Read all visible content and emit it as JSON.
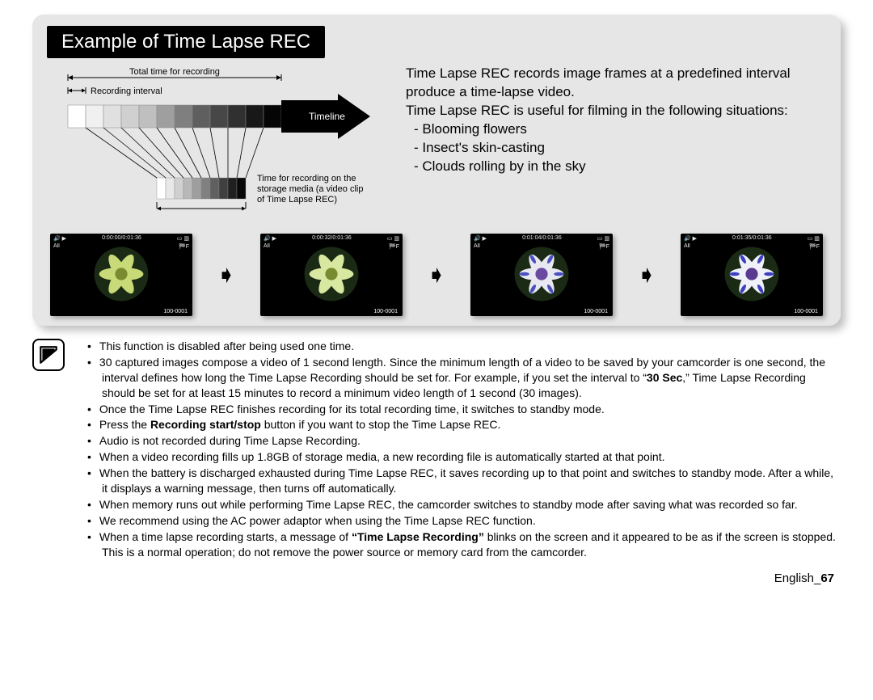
{
  "panel": {
    "title": "Example of Time Lapse REC",
    "diagram": {
      "label_total": "Total time for recording",
      "label_interval": "Recording interval",
      "label_timeline": "Timeline",
      "label_storage": "Time for recording on the\nstorage media (a video clip\nof Time Lapse REC)",
      "timeline_segments": 12,
      "timeline_colors": [
        "#ffffff",
        "#f0f0f0",
        "#e0e0e0",
        "#d0d0d0",
        "#bfbfbf",
        "#9f9f9f",
        "#7f7f7f",
        "#5f5f5f",
        "#474747",
        "#303030",
        "#181818",
        "#050505"
      ],
      "condensed_segments": 10,
      "condensed_colors": [
        "#ffffff",
        "#e8e8e8",
        "#d0d0d0",
        "#b8b8b8",
        "#9e9e9e",
        "#808080",
        "#606060",
        "#404040",
        "#202020",
        "#080808"
      ]
    },
    "description": {
      "p1": "Time Lapse REC records image frames at a predefined interval produce a time-lapse video.",
      "p2": "Time Lapse REC is useful for filming in the following situations:",
      "items": [
        "Blooming flowers",
        "Insect's skin-casting",
        "Clouds rolling by in the sky"
      ]
    },
    "thumbs": [
      {
        "time": "0:00:00/0:01:36",
        "file": "100-0001",
        "petal": "#c8d978",
        "center": "#7a8a30",
        "tip": "#c8d978"
      },
      {
        "time": "0:00:32/0:01:36",
        "file": "100-0001",
        "petal": "#d8e8a0",
        "center": "#7a8a30",
        "tip": "#d8e8a0"
      },
      {
        "time": "0:01:04/0:01:36",
        "file": "100-0001",
        "petal": "#e8e8f0",
        "center": "#6a4aa0",
        "tip": "#4a50c0"
      },
      {
        "time": "0:01:35/0:01:36",
        "file": "100-0001",
        "petal": "#f0f0f8",
        "center": "#5a3a90",
        "tip": "#3a40c0"
      }
    ]
  },
  "notes": [
    "This function is disabled after being used one time.",
    "30 captured images compose a video of 1 second length. Since the minimum length of a video to be saved by your camcorder is one second, the interval defines how long the Time Lapse Recording should be set for. For example, if you set the interval to “<b>30 Sec</b>,” Time Lapse Recording should be set for at least 15 minutes to record a minimum video length of 1 second (30 images).",
    "Once the Time Lapse REC finishes recording for its total recording time, it switches to standby mode.",
    "Press the <b>Recording start/stop</b> button if you want to stop the Time Lapse REC.",
    "Audio is not recorded during Time Lapse Recording.",
    "When a video recording fills up 1.8GB of storage media, a new recording file is automatically started at that point.",
    "When the battery is discharged exhausted during Time Lapse REC, it saves recording up to that point and switches to standby mode. After a while, it displays a warning message, then turns off automatically.",
    "When memory runs out while performing Time Lapse REC, the camcorder switches to standby mode after saving what was recorded so far.",
    "We recommend using the AC power adaptor when using the Time Lapse REC function.",
    "When a time lapse recording starts, a message of <b>“Time Lapse Recording”</b> blinks on the screen and it appeared to be as if the screen is stopped. This is a normal operation; do not remove the power source or memory card from the camcorder."
  ],
  "footer": {
    "lang": "English_",
    "page": "67"
  }
}
